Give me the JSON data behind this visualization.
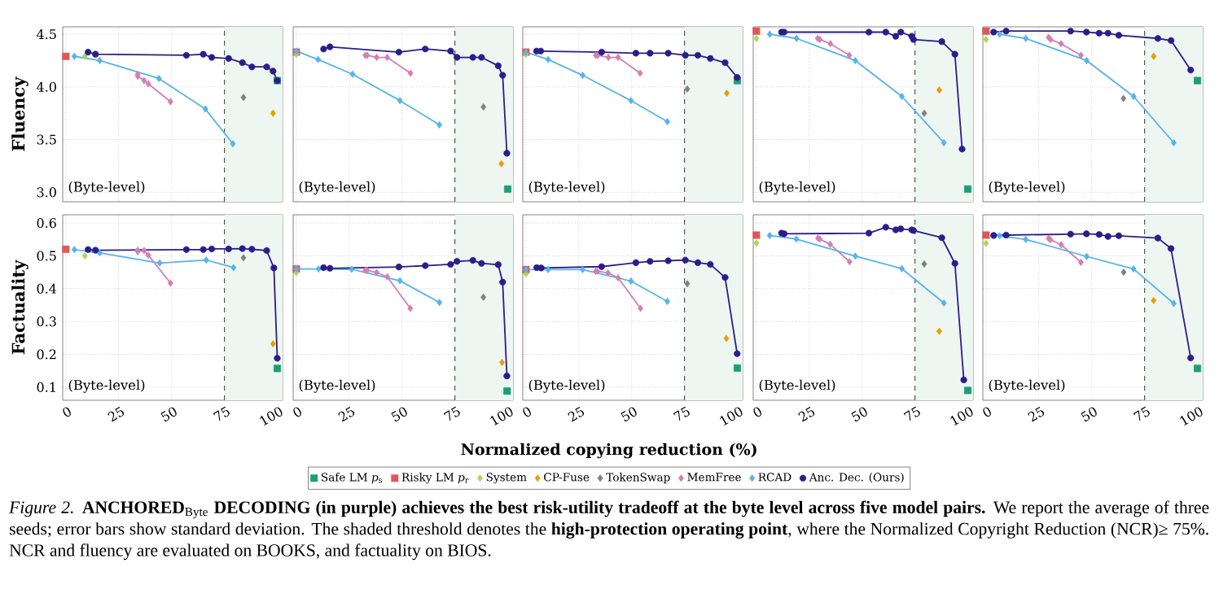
{
  "chart_data": [
    {
      "type": "line",
      "ylabel": "Fluency",
      "xlim": [
        -1.5,
        102.5
      ],
      "ylim": [
        2.91,
        4.57
      ],
      "xticks": [
        0,
        25,
        50,
        75,
        100
      ],
      "yticks": [
        {
          "value": 3,
          "label": "3.0"
        },
        3.5,
        {
          "value": 4,
          "label": "4.0"
        },
        4.5
      ],
      "grid": true,
      "tick_labels": "y",
      "annotations": [
        "(Byte-level)"
      ],
      "bands": [
        {
          "axis": "x",
          "from": 75,
          "to": 102.5,
          "color": "#eef6f2"
        }
      ],
      "ref_lines": [
        {
          "axis": "x",
          "value": 75,
          "color": "#555555",
          "line_style": "dashed"
        }
      ],
      "series": [
        {
          "type": "scatter",
          "marker": "square",
          "color": "#1b9e77",
          "x": [
            100
          ],
          "values": [
            4.06
          ]
        },
        {
          "type": "scatter",
          "marker": "square",
          "color": "#e15759",
          "x": [
            0
          ],
          "values": [
            4.29
          ]
        },
        {
          "type": "scatter",
          "marker": "diamond",
          "color": "#a6d854",
          "x": [
            9
          ],
          "values": [
            4.29
          ]
        },
        {
          "type": "scatter",
          "marker": "diamond",
          "color": "#e69f00",
          "x": [
            98
          ],
          "values": [
            3.75
          ]
        },
        {
          "type": "scatter",
          "marker": "diamond",
          "color": "#808080",
          "x": [
            84
          ],
          "values": [
            3.9
          ]
        },
        {
          "type": "line",
          "marker": "diamond",
          "color": "#d47fb4",
          "x": [
            34,
            34,
            37,
            39,
            49.5
          ],
          "values": [
            4.12,
            4.1,
            4.06,
            4.03,
            3.86
          ]
        },
        {
          "type": "line",
          "marker": "diamond",
          "color": "#56b4e9",
          "x": [
            4,
            16,
            44,
            66,
            79
          ],
          "values": [
            4.29,
            4.25,
            4.08,
            3.79,
            3.46
          ]
        },
        {
          "type": "line",
          "marker": "circle",
          "color": "#2b1d8a",
          "x": [
            10.5,
            14,
            57,
            65,
            69,
            77,
            83.5,
            88,
            95,
            98,
            100
          ],
          "values": [
            4.33,
            4.31,
            4.3,
            4.31,
            4.28,
            4.27,
            4.23,
            4.19,
            4.19,
            4.15,
            4.06
          ]
        }
      ]
    },
    {
      "type": "line",
      "xlim": [
        -1.5,
        102.5
      ],
      "ylim": [
        2.91,
        4.57
      ],
      "xticks": [
        0,
        25,
        50,
        75,
        100
      ],
      "yticks": [
        3.0,
        3.5,
        4.0,
        4.5
      ],
      "grid": true,
      "tick_labels": false,
      "annotations": [
        "(Byte-level)"
      ],
      "bands": [
        {
          "axis": "x",
          "from": 75,
          "to": 102.5,
          "color": "#eef6f2"
        }
      ],
      "ref_lines": [
        {
          "axis": "x",
          "value": 75,
          "color": "#555555",
          "line_style": "dashed"
        }
      ],
      "series": [
        {
          "type": "scatter",
          "marker": "square",
          "color": "#1b9e77",
          "x": [
            100
          ],
          "values": [
            3.03
          ]
        },
        {
          "type": "scatter",
          "marker": "square",
          "color": "#e15759",
          "x": [
            0
          ],
          "values": [
            4.33
          ]
        },
        {
          "type": "scatter",
          "marker": "diamond",
          "color": "#a6d854",
          "x": [
            0
          ],
          "values": [
            4.31
          ]
        },
        {
          "type": "scatter",
          "marker": "diamond",
          "color": "#e69f00",
          "x": [
            97
          ],
          "values": [
            3.27
          ]
        },
        {
          "type": "scatter",
          "marker": "diamond",
          "color": "#808080",
          "x": [
            88.5
          ],
          "values": [
            3.81
          ]
        },
        {
          "type": "line",
          "marker": "diamond",
          "color": "#d47fb4",
          "x": [
            32.6,
            33.5,
            38,
            43,
            54
          ],
          "values": [
            4.3,
            4.3,
            4.28,
            4.28,
            4.13
          ]
        },
        {
          "type": "line",
          "marker": "diamond",
          "color": "#56b4e9",
          "x": [
            0,
            10.3,
            26.6,
            49,
            67.7
          ],
          "values": [
            4.34,
            4.26,
            4.12,
            3.87,
            3.64
          ]
        },
        {
          "type": "line",
          "marker": "circle",
          "color": "#2b1d8a",
          "x": [
            12.9,
            15.9,
            48.5,
            61,
            73,
            76,
            83.5,
            87.6,
            95.5,
            97.6,
            99.6
          ],
          "values": [
            4.36,
            4.38,
            4.33,
            4.36,
            4.34,
            4.28,
            4.28,
            4.28,
            4.2,
            4.11,
            3.37
          ]
        }
      ]
    },
    {
      "type": "line",
      "xlim": [
        -1.5,
        102.5
      ],
      "ylim": [
        2.91,
        4.57
      ],
      "xticks": [
        0,
        25,
        50,
        75,
        100
      ],
      "yticks": [
        3.0,
        3.5,
        4.0,
        4.5
      ],
      "grid": true,
      "tick_labels": false,
      "annotations": [
        "(Byte-level)"
      ],
      "bands": [
        {
          "axis": "x",
          "from": 75,
          "to": 102.5,
          "color": "#eef6f2"
        }
      ],
      "ref_lines": [
        {
          "axis": "x",
          "value": 75,
          "color": "#555555",
          "line_style": "dashed"
        }
      ],
      "series": [
        {
          "type": "scatter",
          "marker": "square",
          "color": "#1b9e77",
          "x": [
            100
          ],
          "values": [
            4.06
          ]
        },
        {
          "type": "scatter",
          "marker": "square",
          "color": "#e15759",
          "x": [
            0
          ],
          "values": [
            4.33
          ]
        },
        {
          "type": "scatter",
          "marker": "diamond",
          "color": "#a6d854",
          "x": [
            0
          ],
          "values": [
            4.31
          ]
        },
        {
          "type": "scatter",
          "marker": "diamond",
          "color": "#e69f00",
          "x": [
            95
          ],
          "values": [
            3.94
          ]
        },
        {
          "type": "scatter",
          "marker": "diamond",
          "color": "#808080",
          "x": [
            76.3
          ],
          "values": [
            3.98
          ]
        },
        {
          "type": "line",
          "marker": "diamond",
          "color": "#d47fb4",
          "x": [
            33,
            34,
            39,
            43.6,
            54
          ],
          "values": [
            4.3,
            4.3,
            4.28,
            4.28,
            4.13
          ]
        },
        {
          "type": "line",
          "marker": "diamond",
          "color": "#56b4e9",
          "x": [
            0,
            10.5,
            26.8,
            49.7,
            66.9
          ],
          "values": [
            4.33,
            4.26,
            4.11,
            3.87,
            3.67
          ]
        },
        {
          "type": "line",
          "marker": "circle",
          "color": "#2b1d8a",
          "x": [
            5,
            7,
            35.8,
            52,
            58.7,
            67.3,
            75.4,
            81.3,
            87.2,
            94.2,
            99.9
          ],
          "values": [
            4.34,
            4.34,
            4.33,
            4.32,
            4.32,
            4.32,
            4.3,
            4.3,
            4.27,
            4.23,
            4.09
          ]
        }
      ]
    },
    {
      "type": "line",
      "xlim": [
        -1.5,
        102.5
      ],
      "ylim": [
        2.91,
        4.57
      ],
      "xticks": [
        0,
        25,
        50,
        75,
        100
      ],
      "yticks": [
        3.0,
        3.5,
        4.0,
        4.5
      ],
      "grid": true,
      "tick_labels": false,
      "annotations": [
        "(Byte-level)"
      ],
      "bands": [
        {
          "axis": "x",
          "from": 75,
          "to": 102.5,
          "color": "#eef6f2"
        }
      ],
      "ref_lines": [
        {
          "axis": "x",
          "value": 75,
          "color": "#555555",
          "line_style": "dashed"
        }
      ],
      "series": [
        {
          "type": "scatter",
          "marker": "square",
          "color": "#1b9e77",
          "x": [
            100
          ],
          "values": [
            3.03
          ]
        },
        {
          "type": "scatter",
          "marker": "square",
          "color": "#e15759",
          "x": [
            0
          ],
          "values": [
            4.53
          ]
        },
        {
          "type": "scatter",
          "marker": "diamond",
          "color": "#a6d854",
          "x": [
            0
          ],
          "values": [
            4.46
          ]
        },
        {
          "type": "scatter",
          "marker": "diamond",
          "color": "#e69f00",
          "x": [
            86.5
          ],
          "values": [
            3.97
          ]
        },
        {
          "type": "scatter",
          "marker": "diamond",
          "color": "#808080",
          "x": [
            79.4
          ],
          "values": [
            3.75
          ]
        },
        {
          "type": "line",
          "marker": "diamond",
          "color": "#d47fb4",
          "x": [
            29,
            30,
            35,
            44
          ],
          "values": [
            4.46,
            4.45,
            4.41,
            4.3
          ]
        },
        {
          "type": "line",
          "marker": "diamond",
          "color": "#56b4e9",
          "x": [
            6.3,
            19,
            46.8,
            68.8,
            88.7
          ],
          "values": [
            4.5,
            4.46,
            4.25,
            3.91,
            3.47
          ]
        },
        {
          "type": "line",
          "marker": "circle",
          "color": "#2b1d8a",
          "x": [
            11.9,
            13.1,
            53.2,
            61.2,
            65.9,
            68.3,
            73.5,
            74.3,
            87.7,
            93.9,
            97.3
          ],
          "values": [
            4.52,
            4.52,
            4.52,
            4.52,
            4.48,
            4.52,
            4.48,
            4.45,
            4.43,
            4.31,
            3.41
          ]
        }
      ]
    },
    {
      "type": "line",
      "xlim": [
        -1.5,
        102.5
      ],
      "ylim": [
        2.91,
        4.57
      ],
      "xticks": [
        0,
        25,
        50,
        75,
        100
      ],
      "yticks": [
        3.0,
        3.5,
        4.0,
        4.5
      ],
      "grid": true,
      "tick_labels": false,
      "annotations": [
        "(Byte-level)"
      ],
      "bands": [
        {
          "axis": "x",
          "from": 75,
          "to": 102.5,
          "color": "#eef6f2"
        }
      ],
      "ref_lines": [
        {
          "axis": "x",
          "value": 75,
          "color": "#555555",
          "line_style": "dashed"
        }
      ],
      "series": [
        {
          "type": "scatter",
          "marker": "square",
          "color": "#1b9e77",
          "x": [
            100
          ],
          "values": [
            4.06
          ]
        },
        {
          "type": "scatter",
          "marker": "square",
          "color": "#e15759",
          "x": [
            0
          ],
          "values": [
            4.53
          ]
        },
        {
          "type": "scatter",
          "marker": "diamond",
          "color": "#a6d854",
          "x": [
            0
          ],
          "values": [
            4.45
          ]
        },
        {
          "type": "scatter",
          "marker": "diamond",
          "color": "#e69f00",
          "x": [
            79.3
          ],
          "values": [
            4.29
          ]
        },
        {
          "type": "scatter",
          "marker": "diamond",
          "color": "#808080",
          "x": [
            65
          ],
          "values": [
            3.89
          ]
        },
        {
          "type": "line",
          "marker": "diamond",
          "color": "#d47fb4",
          "x": [
            29.6,
            30.5,
            35.5,
            44.9
          ],
          "values": [
            4.47,
            4.45,
            4.41,
            4.3
          ]
        },
        {
          "type": "line",
          "marker": "diamond",
          "color": "#56b4e9",
          "x": [
            6.4,
            18.8,
            47.6,
            69.8,
            88.8
          ],
          "values": [
            4.5,
            4.46,
            4.25,
            3.91,
            3.47
          ]
        },
        {
          "type": "line",
          "marker": "circle",
          "color": "#2b1d8a",
          "x": [
            3.6,
            9.5,
            40,
            47.5,
            53.5,
            57.7,
            62.8,
            81.3,
            87.5,
            96.8
          ],
          "values": [
            4.52,
            4.53,
            4.53,
            4.52,
            4.51,
            4.51,
            4.49,
            4.46,
            4.44,
            4.16
          ]
        }
      ]
    },
    {
      "type": "line",
      "ylabel": "Factuality",
      "xlim": [
        -1.5,
        102.5
      ],
      "ylim": [
        0.06,
        0.625
      ],
      "xticks": [
        0,
        25,
        50,
        75,
        100
      ],
      "yticks": [
        0.1,
        0.2,
        0.3,
        0.4,
        0.5,
        0.6
      ],
      "grid": true,
      "annotations": [
        "(Byte-level)"
      ],
      "bands": [
        {
          "axis": "x",
          "from": 75,
          "to": 102.5,
          "color": "#eef6f2"
        }
      ],
      "ref_lines": [
        {
          "axis": "x",
          "value": 75,
          "color": "#555555",
          "line_style": "dashed"
        }
      ],
      "series": [
        {
          "type": "scatter",
          "marker": "square",
          "color": "#1b9e77",
          "x": [
            100
          ],
          "values": [
            0.157
          ]
        },
        {
          "type": "scatter",
          "marker": "square",
          "color": "#e15759",
          "x": [
            0
          ],
          "values": [
            0.52
          ]
        },
        {
          "type": "scatter",
          "marker": "diamond",
          "color": "#a6d854",
          "x": [
            9
          ],
          "values": [
            0.5
          ]
        },
        {
          "type": "scatter",
          "marker": "diamond",
          "color": "#e69f00",
          "x": [
            98
          ],
          "values": [
            0.232
          ]
        },
        {
          "type": "scatter",
          "marker": "diamond",
          "color": "#808080",
          "x": [
            84
          ],
          "values": [
            0.494
          ]
        },
        {
          "type": "line",
          "marker": "diamond",
          "color": "#d47fb4",
          "x": [
            34,
            34,
            37,
            39,
            49.5
          ],
          "values": [
            0.517,
            0.513,
            0.516,
            0.502,
            0.417
          ]
        },
        {
          "type": "line",
          "marker": "diamond",
          "color": "#56b4e9",
          "x": [
            4,
            16,
            44.4,
            66.4,
            79.3
          ],
          "values": [
            0.519,
            0.509,
            0.478,
            0.487,
            0.464
          ]
        },
        {
          "type": "line",
          "marker": "circle",
          "color": "#2b1d8a",
          "x": [
            10.5,
            14,
            57,
            65,
            69,
            77,
            83.5,
            88,
            95,
            98.4,
            100
          ],
          "values": [
            0.519,
            0.517,
            0.519,
            0.519,
            0.521,
            0.521,
            0.522,
            0.52,
            0.516,
            0.463,
            0.188
          ]
        }
      ]
    },
    {
      "type": "line",
      "xlim": [
        -1.5,
        102.5
      ],
      "ylim": [
        0.06,
        0.625
      ],
      "xticks": [
        0,
        25,
        50,
        75,
        100
      ],
      "yticks": [
        0.1,
        0.2,
        0.3,
        0.4,
        0.5,
        0.6
      ],
      "grid": true,
      "tick_labels": "x",
      "annotations": [
        "(Byte-level)"
      ],
      "bands": [
        {
          "axis": "x",
          "from": 75,
          "to": 102.5,
          "color": "#eef6f2"
        }
      ],
      "ref_lines": [
        {
          "axis": "x",
          "value": 75,
          "color": "#555555",
          "line_style": "dashed"
        }
      ],
      "series": [
        {
          "type": "scatter",
          "marker": "square",
          "color": "#1b9e77",
          "x": [
            99.7
          ],
          "values": [
            0.088
          ]
        },
        {
          "type": "scatter",
          "marker": "square",
          "color": "#e15759",
          "x": [
            0
          ],
          "values": [
            0.46
          ]
        },
        {
          "type": "scatter",
          "marker": "diamond",
          "color": "#a6d854",
          "x": [
            0
          ],
          "values": [
            0.449
          ]
        },
        {
          "type": "scatter",
          "marker": "diamond",
          "color": "#e69f00",
          "x": [
            97.3
          ],
          "values": [
            0.175
          ]
        },
        {
          "type": "scatter",
          "marker": "diamond",
          "color": "#808080",
          "x": [
            88.5
          ],
          "values": [
            0.374
          ]
        },
        {
          "type": "line",
          "marker": "diamond",
          "color": "#d47fb4",
          "x": [
            32.6,
            33.5,
            38,
            43,
            53.9
          ],
          "values": [
            0.456,
            0.456,
            0.449,
            0.436,
            0.34
          ]
        },
        {
          "type": "line",
          "marker": "diamond",
          "color": "#56b4e9",
          "x": [
            0,
            10.5,
            26.2,
            49,
            67.7
          ],
          "values": [
            0.46,
            0.46,
            0.459,
            0.424,
            0.358
          ]
        },
        {
          "type": "line",
          "marker": "circle",
          "color": "#2b1d8a",
          "x": [
            12.9,
            15.9,
            48.5,
            61,
            73,
            76,
            83.5,
            87.6,
            95.5,
            97.6,
            99.6
          ],
          "values": [
            0.464,
            0.462,
            0.466,
            0.47,
            0.474,
            0.483,
            0.486,
            0.477,
            0.473,
            0.42,
            0.134
          ]
        }
      ]
    },
    {
      "type": "line",
      "xlabel": "Normalized copying reduction (%)",
      "legend": "bottom",
      "xlim": [
        -1.5,
        102.5
      ],
      "ylim": [
        0.06,
        0.625
      ],
      "xticks": [
        0,
        25,
        50,
        75,
        100
      ],
      "yticks": [
        0.1,
        0.2,
        0.3,
        0.4,
        0.5,
        0.6
      ],
      "grid": true,
      "tick_labels": "x",
      "annotations": [
        "(Byte-level)",
        "*Figure 2.* **ANCHORED**$_{Byte}$ **DECODING (in purple) achieves the best risk-utility tradeoff at the byte level across five model pairs.** We report the average of three seeds; error bars show standard deviation. The shaded threshold denotes the **high-protection operating point**, where the Normalized Copyright Reduction (NCR)≥ 75%. NCR and fluency are evaluated on BOOKS, and factuality on BIOS."
      ],
      "bands": [
        {
          "axis": "x",
          "from": 75,
          "to": 102.5,
          "color": "#eef6f2"
        }
      ],
      "ref_lines": [
        {
          "axis": "x",
          "value": 75,
          "color": "#555555",
          "line_style": "dashed"
        }
      ],
      "series": [
        {
          "name": "Safe LM *p*$_{s}$",
          "type": "scatter",
          "marker": "square",
          "color": "#1b9e77",
          "x": [
            100
          ],
          "values": [
            0.158
          ]
        },
        {
          "name": "Risky LM *p*$_{r}$",
          "type": "scatter",
          "marker": "square",
          "color": "#e15759",
          "x": [
            0
          ],
          "values": [
            0.458
          ]
        },
        {
          "name": "System",
          "type": "scatter",
          "marker": "diamond",
          "color": "#a6d854",
          "x": [
            0
          ],
          "values": [
            0.445
          ]
        },
        {
          "name": "CP-Fuse",
          "type": "scatter",
          "marker": "diamond",
          "color": "#e69f00",
          "x": [
            94.8
          ],
          "values": [
            0.248
          ]
        },
        {
          "name": "TokenSwap",
          "type": "scatter",
          "marker": "diamond",
          "color": "#808080",
          "x": [
            76.3
          ],
          "values": [
            0.415
          ]
        },
        {
          "name": "MemFree",
          "type": "line",
          "marker": "diamond",
          "color": "#d47fb4",
          "x": [
            33,
            33.8,
            38.8,
            43.6,
            54.2
          ],
          "values": [
            0.453,
            0.453,
            0.448,
            0.433,
            0.34
          ]
        },
        {
          "name": "RCAD",
          "type": "line",
          "marker": "diamond",
          "color": "#56b4e9",
          "x": [
            0,
            10.5,
            26.8,
            49.7,
            66.9
          ],
          "values": [
            0.458,
            0.458,
            0.458,
            0.423,
            0.361
          ]
        },
        {
          "name": "Anc. Dec. (Ours)",
          "type": "line",
          "marker": "circle",
          "color": "#2b1d8a",
          "x": [
            5.1,
            7.2,
            35.8,
            52,
            58.7,
            67.3,
            75.4,
            81.3,
            87.2,
            94.2,
            99.9
          ],
          "values": [
            0.464,
            0.463,
            0.467,
            0.479,
            0.483,
            0.485,
            0.487,
            0.479,
            0.474,
            0.434,
            0.202
          ]
        }
      ]
    },
    {
      "type": "line",
      "xlim": [
        -1.5,
        102.5
      ],
      "ylim": [
        0.06,
        0.625
      ],
      "xticks": [
        0,
        25,
        50,
        75,
        100
      ],
      "yticks": [
        0.1,
        0.2,
        0.3,
        0.4,
        0.5,
        0.6
      ],
      "grid": true,
      "tick_labels": "x",
      "annotations": [
        "(Byte-level)"
      ],
      "bands": [
        {
          "axis": "x",
          "from": 75,
          "to": 102.5,
          "color": "#eef6f2"
        }
      ],
      "ref_lines": [
        {
          "axis": "x",
          "value": 75,
          "color": "#555555",
          "line_style": "dashed"
        }
      ],
      "series": [
        {
          "type": "scatter",
          "marker": "square",
          "color": "#1b9e77",
          "x": [
            100
          ],
          "values": [
            0.09
          ]
        },
        {
          "type": "scatter",
          "marker": "square",
          "color": "#e15759",
          "x": [
            0
          ],
          "values": [
            0.563
          ]
        },
        {
          "type": "scatter",
          "marker": "diamond",
          "color": "#a6d854",
          "x": [
            0
          ],
          "values": [
            0.539
          ]
        },
        {
          "type": "scatter",
          "marker": "diamond",
          "color": "#e69f00",
          "x": [
            86.5
          ],
          "values": [
            0.27
          ]
        },
        {
          "type": "scatter",
          "marker": "diamond",
          "color": "#808080",
          "x": [
            79.4
          ],
          "values": [
            0.475
          ]
        },
        {
          "type": "line",
          "marker": "diamond",
          "color": "#d47fb4",
          "x": [
            29.1,
            30,
            34.9,
            44.1
          ],
          "values": [
            0.554,
            0.551,
            0.535,
            0.482
          ]
        },
        {
          "type": "line",
          "marker": "diamond",
          "color": "#56b4e9",
          "x": [
            6.3,
            18.9,
            46.8,
            68.8,
            88.7
          ],
          "values": [
            0.562,
            0.551,
            0.499,
            0.461,
            0.356
          ]
        },
        {
          "type": "line",
          "marker": "circle",
          "color": "#2b1d8a",
          "x": [
            11.9,
            13.1,
            53.2,
            61.2,
            65.9,
            68.3,
            73.5,
            74.3,
            87.7,
            93.9,
            98.1
          ],
          "values": [
            0.569,
            0.567,
            0.569,
            0.587,
            0.579,
            0.582,
            0.579,
            0.577,
            0.555,
            0.477,
            0.122
          ]
        }
      ]
    },
    {
      "type": "line",
      "xlim": [
        -1.5,
        102.5
      ],
      "ylim": [
        0.06,
        0.625
      ],
      "xticks": [
        0,
        25,
        50,
        75,
        100
      ],
      "yticks": [
        0.1,
        0.2,
        0.3,
        0.4,
        0.5,
        0.6
      ],
      "grid": true,
      "tick_labels": "x",
      "annotations": [
        "(Byte-level)"
      ],
      "bands": [
        {
          "axis": "x",
          "from": 75,
          "to": 102.5,
          "color": "#eef6f2"
        }
      ],
      "ref_lines": [
        {
          "axis": "x",
          "value": 75,
          "color": "#555555",
          "line_style": "dashed"
        }
      ],
      "series": [
        {
          "type": "scatter",
          "marker": "square",
          "color": "#1b9e77",
          "x": [
            100
          ],
          "values": [
            0.157
          ]
        },
        {
          "type": "scatter",
          "marker": "square",
          "color": "#e15759",
          "x": [
            0
          ],
          "values": [
            0.563
          ]
        },
        {
          "type": "scatter",
          "marker": "diamond",
          "color": "#a6d854",
          "x": [
            0
          ],
          "values": [
            0.538
          ]
        },
        {
          "type": "scatter",
          "marker": "diamond",
          "color": "#e69f00",
          "x": [
            79.3
          ],
          "values": [
            0.364
          ]
        },
        {
          "type": "scatter",
          "marker": "diamond",
          "color": "#808080",
          "x": [
            65.1
          ],
          "values": [
            0.45
          ]
        },
        {
          "type": "line",
          "marker": "diamond",
          "color": "#d47fb4",
          "x": [
            29.6,
            30.5,
            35.5,
            44.9
          ],
          "values": [
            0.553,
            0.549,
            0.534,
            0.48
          ]
        },
        {
          "type": "line",
          "marker": "diamond",
          "color": "#56b4e9",
          "x": [
            6.4,
            18.8,
            47.6,
            69.8,
            88.8
          ],
          "values": [
            0.561,
            0.55,
            0.498,
            0.46,
            0.355
          ]
        },
        {
          "type": "line",
          "marker": "circle",
          "color": "#2b1d8a",
          "x": [
            3.6,
            9.5,
            40,
            47.5,
            53.5,
            57.7,
            62.8,
            81.3,
            87.5,
            96.8
          ],
          "values": [
            0.562,
            0.563,
            0.566,
            0.567,
            0.565,
            0.559,
            0.561,
            0.554,
            0.522,
            0.189
          ]
        }
      ]
    }
  ]
}
